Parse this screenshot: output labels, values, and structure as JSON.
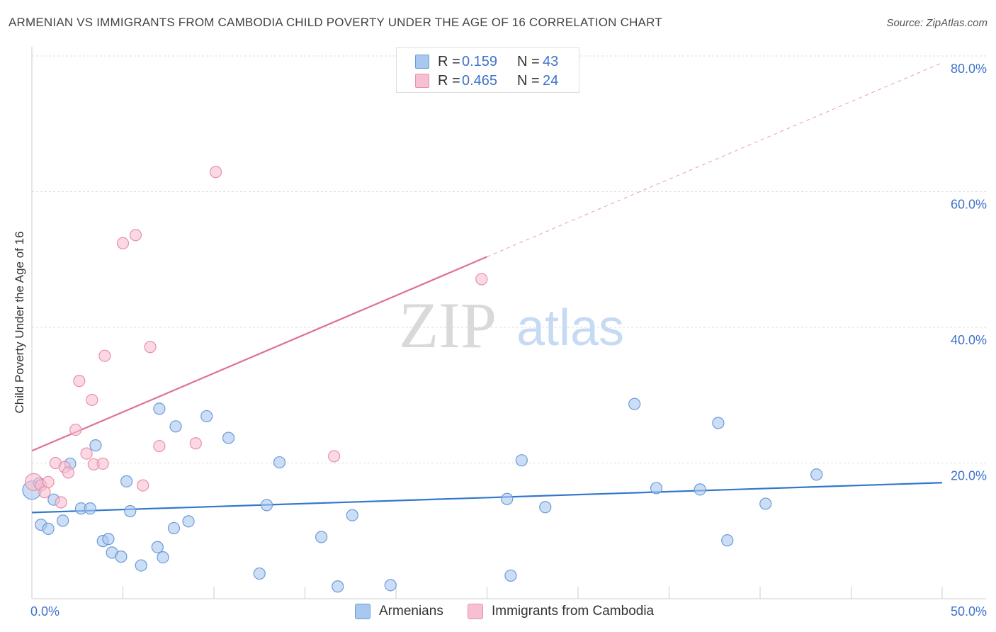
{
  "header": {
    "title": "ARMENIAN VS IMMIGRANTS FROM CAMBODIA CHILD POVERTY UNDER THE AGE OF 16 CORRELATION CHART",
    "source": "Source: ZipAtlas.com"
  },
  "legend_top": {
    "rows": [
      {
        "r_label": "R =",
        "r_value": "0.159",
        "n_label": "N =",
        "n_value": "43"
      },
      {
        "r_label": "R =",
        "r_value": "0.465",
        "n_label": "N =",
        "n_value": "24"
      }
    ]
  },
  "legend_bottom": {
    "items": [
      "Armenians",
      "Immigrants from Cambodia"
    ]
  },
  "watermark": {
    "zip": "ZIP",
    "atlas": "atlas"
  },
  "colors": {
    "armenians_fill": "#a9c8f0",
    "armenians_stroke": "#6b9bd8",
    "armenians_line": "#3377cc",
    "cambodia_fill": "#f7c0d0",
    "cambodia_stroke": "#e990ac",
    "cambodia_line": "#e07095",
    "axis_text": "#3f73c9",
    "grid": "#dddddd"
  },
  "chart_data": {
    "type": "scatter",
    "title": "ARMENIAN VS IMMIGRANTS FROM CAMBODIA CHILD POVERTY UNDER THE AGE OF 16 CORRELATION CHART",
    "xlabel": "",
    "ylabel": "Child Poverty Under the Age of 16",
    "xlim": [
      0,
      50
    ],
    "ylim": [
      0,
      80
    ],
    "x_tick_labels": [
      "0.0%",
      "50.0%"
    ],
    "y_ticks": [
      20,
      40,
      60,
      80
    ],
    "y_tick_labels": [
      "20.0%",
      "40.0%",
      "60.0%",
      "80.0%"
    ],
    "series": [
      {
        "name": "Armenians",
        "R": 0.159,
        "N": 43,
        "points": [
          [
            0.0,
            16.0
          ],
          [
            0.4,
            17.0
          ],
          [
            0.5,
            10.9
          ],
          [
            0.9,
            10.3
          ],
          [
            1.2,
            14.6
          ],
          [
            1.7,
            11.5
          ],
          [
            2.1,
            19.9
          ],
          [
            2.7,
            13.3
          ],
          [
            3.2,
            13.3
          ],
          [
            3.5,
            22.6
          ],
          [
            3.9,
            8.5
          ],
          [
            4.2,
            8.8
          ],
          [
            4.4,
            6.8
          ],
          [
            4.9,
            6.2
          ],
          [
            5.2,
            17.3
          ],
          [
            5.4,
            12.9
          ],
          [
            6.0,
            4.9
          ],
          [
            6.9,
            7.6
          ],
          [
            7.0,
            28.0
          ],
          [
            7.2,
            6.1
          ],
          [
            7.8,
            10.4
          ],
          [
            7.9,
            25.4
          ],
          [
            8.6,
            11.4
          ],
          [
            9.6,
            26.9
          ],
          [
            10.8,
            23.7
          ],
          [
            12.5,
            3.7
          ],
          [
            12.9,
            13.8
          ],
          [
            13.6,
            20.1
          ],
          [
            15.9,
            9.1
          ],
          [
            16.8,
            1.8
          ],
          [
            17.6,
            12.3
          ],
          [
            19.7,
            2.0
          ],
          [
            26.1,
            14.7
          ],
          [
            26.3,
            3.4
          ],
          [
            26.9,
            20.4
          ],
          [
            28.2,
            13.5
          ],
          [
            33.1,
            28.7
          ],
          [
            34.3,
            16.3
          ],
          [
            36.7,
            16.1
          ],
          [
            37.7,
            25.9
          ],
          [
            38.2,
            8.6
          ],
          [
            40.3,
            14.0
          ],
          [
            43.1,
            18.3
          ]
        ],
        "trend": [
          [
            0,
            12.7
          ],
          [
            50,
            17.1
          ]
        ]
      },
      {
        "name": "Immigrants from Cambodia",
        "R": 0.465,
        "N": 24,
        "points": [
          [
            0.1,
            17.2
          ],
          [
            0.5,
            16.7
          ],
          [
            0.9,
            17.2
          ],
          [
            0.7,
            15.7
          ],
          [
            1.3,
            20.0
          ],
          [
            1.6,
            14.2
          ],
          [
            1.8,
            19.4
          ],
          [
            2.0,
            18.6
          ],
          [
            2.4,
            24.9
          ],
          [
            2.6,
            32.1
          ],
          [
            3.0,
            21.4
          ],
          [
            3.3,
            29.3
          ],
          [
            3.4,
            19.8
          ],
          [
            3.9,
            19.9
          ],
          [
            4.0,
            35.8
          ],
          [
            5.0,
            52.4
          ],
          [
            5.7,
            53.6
          ],
          [
            6.1,
            16.7
          ],
          [
            6.5,
            37.1
          ],
          [
            7.0,
            22.5
          ],
          [
            9.0,
            22.9
          ],
          [
            10.1,
            62.9
          ],
          [
            16.6,
            21.0
          ],
          [
            24.7,
            47.1
          ]
        ],
        "trend": [
          [
            0,
            21.8
          ],
          [
            25,
            50.4
          ]
        ],
        "trend_extrapolated": [
          [
            25,
            50.4
          ],
          [
            50,
            79.0
          ]
        ]
      }
    ]
  }
}
